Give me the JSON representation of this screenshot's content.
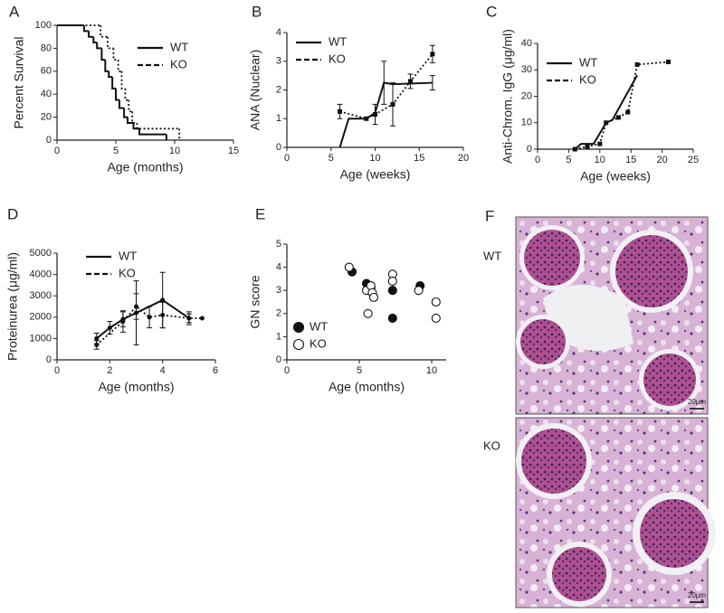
{
  "chart_data": [
    {
      "type": "step",
      "panel": "A",
      "xlabel": "Age (months)",
      "ylabel": "Percent Survival",
      "xlim": [
        0,
        15
      ],
      "ylim": [
        0,
        100
      ],
      "xticks": [
        0,
        5,
        10,
        15
      ],
      "yticks": [
        0,
        20,
        40,
        60,
        80,
        100
      ],
      "series": [
        {
          "name": "WT",
          "color": "#111111",
          "dash": "solid",
          "marker": "none",
          "x": [
            0,
            2.3,
            2.7,
            3.1,
            3.4,
            3.8,
            4.1,
            4.4,
            4.7,
            5.0,
            5.3,
            5.7,
            6.0,
            6.5,
            7.0,
            9.3
          ],
          "values": [
            100,
            95,
            90,
            85,
            80,
            70,
            60,
            55,
            45,
            35,
            28,
            20,
            15,
            10,
            5,
            0
          ]
        },
        {
          "name": "KO",
          "color": "#111111",
          "dash": "dotted",
          "marker": "none",
          "x": [
            0,
            3.7,
            4.3,
            4.8,
            5.2,
            5.5,
            5.8,
            6.1,
            6.4,
            6.8,
            10.4
          ],
          "values": [
            100,
            90,
            80,
            70,
            60,
            45,
            35,
            25,
            15,
            10,
            0
          ]
        }
      ]
    },
    {
      "type": "line",
      "panel": "B",
      "xlabel": "Age (weeks)",
      "ylabel": "ANA (Nuclear)",
      "xlim": [
        0,
        20
      ],
      "ylim": [
        0,
        4
      ],
      "xticks": [
        0,
        5,
        10,
        15,
        20
      ],
      "yticks": [
        0,
        1,
        2,
        3,
        4
      ],
      "series": [
        {
          "name": "WT",
          "color": "#111111",
          "dash": "solid",
          "marker": "none",
          "x": [
            6,
            7,
            9,
            10,
            11,
            12,
            16.5
          ],
          "values": [
            0,
            1,
            1,
            1.2,
            2.25,
            2.2,
            2.25
          ],
          "errors": [
            null,
            null,
            null,
            null,
            0.75,
            null,
            0.25
          ]
        },
        {
          "name": "KO",
          "color": "#111111",
          "dash": "dotted",
          "marker": "square",
          "x": [
            6,
            9,
            10,
            12,
            14,
            16.5
          ],
          "values": [
            1.25,
            1.0,
            1.15,
            1.5,
            2.3,
            3.25
          ],
          "errors": [
            0.25,
            null,
            0.35,
            0.75,
            0.25,
            0.3
          ]
        }
      ]
    },
    {
      "type": "line",
      "panel": "C",
      "xlabel": "Age (weeks)",
      "ylabel": "Anti-Chrom. IgG (μg/ml)",
      "xlim": [
        0,
        25
      ],
      "ylim": [
        0,
        40
      ],
      "xticks": [
        0,
        5,
        10,
        15,
        20,
        25
      ],
      "yticks": [
        0,
        10,
        20,
        30,
        40
      ],
      "series": [
        {
          "name": "WT",
          "color": "#111111",
          "dash": "solid",
          "marker": "none",
          "x": [
            6,
            7,
            9,
            11,
            12,
            16
          ],
          "values": [
            0,
            2,
            2,
            10,
            11,
            28
          ]
        },
        {
          "name": "KO",
          "color": "#111111",
          "dash": "dotted",
          "marker": "square",
          "x": [
            6,
            8,
            10,
            11,
            13,
            14.5,
            16,
            21
          ],
          "values": [
            0,
            1,
            2,
            10,
            12,
            14,
            32,
            33
          ]
        }
      ]
    },
    {
      "type": "line",
      "panel": "D",
      "xlabel": "Age (months)",
      "ylabel": "Proteinurea (μg/ml)",
      "xlim": [
        0,
        6
      ],
      "ylim": [
        0,
        5000
      ],
      "xticks": [
        0,
        2,
        4,
        6
      ],
      "yticks": [
        0,
        1000,
        2000,
        3000,
        4000,
        5000
      ],
      "series": [
        {
          "name": "WT",
          "color": "#111111",
          "dash": "solid",
          "marker": "circle",
          "x": [
            1.5,
            2,
            2.5,
            3,
            4,
            5
          ],
          "values": [
            1000,
            1500,
            1900,
            2200,
            2800,
            1950
          ],
          "errors": [
            250,
            300,
            350,
            1500,
            1300,
            300
          ]
        },
        {
          "name": "KO",
          "color": "#111111",
          "dash": "dotted",
          "marker": "circle",
          "x": [
            1.5,
            2.5,
            3,
            3.5,
            4,
            5,
            5.5
          ],
          "values": [
            700,
            1800,
            2500,
            2000,
            2100,
            1950,
            1950
          ],
          "errors": [
            200,
            500,
            600,
            500,
            600,
            200,
            null
          ]
        }
      ]
    },
    {
      "type": "scatter",
      "panel": "E",
      "xlabel": "Age (months)",
      "ylabel": "GN score",
      "xlim": [
        0,
        11
      ],
      "ylim": [
        0,
        5
      ],
      "xticks": [
        0,
        5,
        10
      ],
      "yticks": [
        0,
        1,
        2,
        3,
        4,
        5
      ],
      "series": [
        {
          "name": "WT",
          "color": "#111111",
          "filled": true,
          "x": [
            4.5,
            5.5,
            5.8,
            7.3,
            7.3,
            9.2
          ],
          "values": [
            3.8,
            3.3,
            3.1,
            3.0,
            1.8,
            3.2
          ]
        },
        {
          "name": "KO",
          "color": "#111111",
          "filled": false,
          "x": [
            4.3,
            5.5,
            5.6,
            5.8,
            5.9,
            6.0,
            7.3,
            7.3,
            9.1,
            10.3,
            10.3
          ],
          "values": [
            4.0,
            3.0,
            2.0,
            3.2,
            2.9,
            2.7,
            3.7,
            3.4,
            3.0,
            2.5,
            1.8
          ]
        }
      ]
    }
  ],
  "histology": {
    "panel": "F",
    "images": [
      {
        "label": "WT",
        "scale_bar": "20μm"
      },
      {
        "label": "KO",
        "scale_bar": "20μm"
      }
    ]
  }
}
